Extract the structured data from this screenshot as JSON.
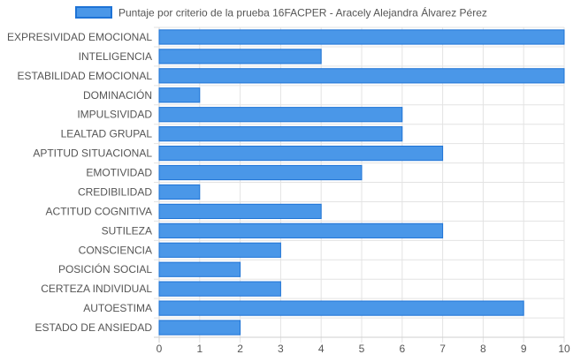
{
  "chart_data": {
    "type": "bar",
    "orientation": "horizontal",
    "categories": [
      "EXPRESIVIDAD EMOCIONAL",
      "INTELIGENCIA",
      "ESTABILIDAD EMOCIONAL",
      "DOMINACIÓN",
      "IMPULSIVIDAD",
      "LEALTAD GRUPAL",
      "APTITUD SITUACIONAL",
      "EMOTIVIDAD",
      "CREDIBILIDAD",
      "ACTITUD COGNITIVA",
      "SUTILEZA",
      "CONSCIENCIA",
      "POSICIÓN SOCIAL",
      "CERTEZA INDIVIDUAL",
      "AUTOESTIMA",
      "ESTADO DE ANSIEDAD"
    ],
    "series": [
      {
        "name": "Puntaje por criterio de la prueba 16FACPER - Aracely Alejandra Álvarez Pérez",
        "values": [
          10,
          4,
          10,
          1,
          6,
          6,
          7,
          5,
          1,
          4,
          7,
          3,
          2,
          3,
          9,
          2
        ],
        "color": "#4a97e8",
        "border_color": "#1e73d6"
      }
    ],
    "xlim": [
      0,
      10
    ],
    "xticks": [
      "0",
      "1",
      "2",
      "3",
      "4",
      "5",
      "6",
      "7",
      "8",
      "9",
      "10"
    ],
    "grid": true,
    "legend_position": "top"
  }
}
